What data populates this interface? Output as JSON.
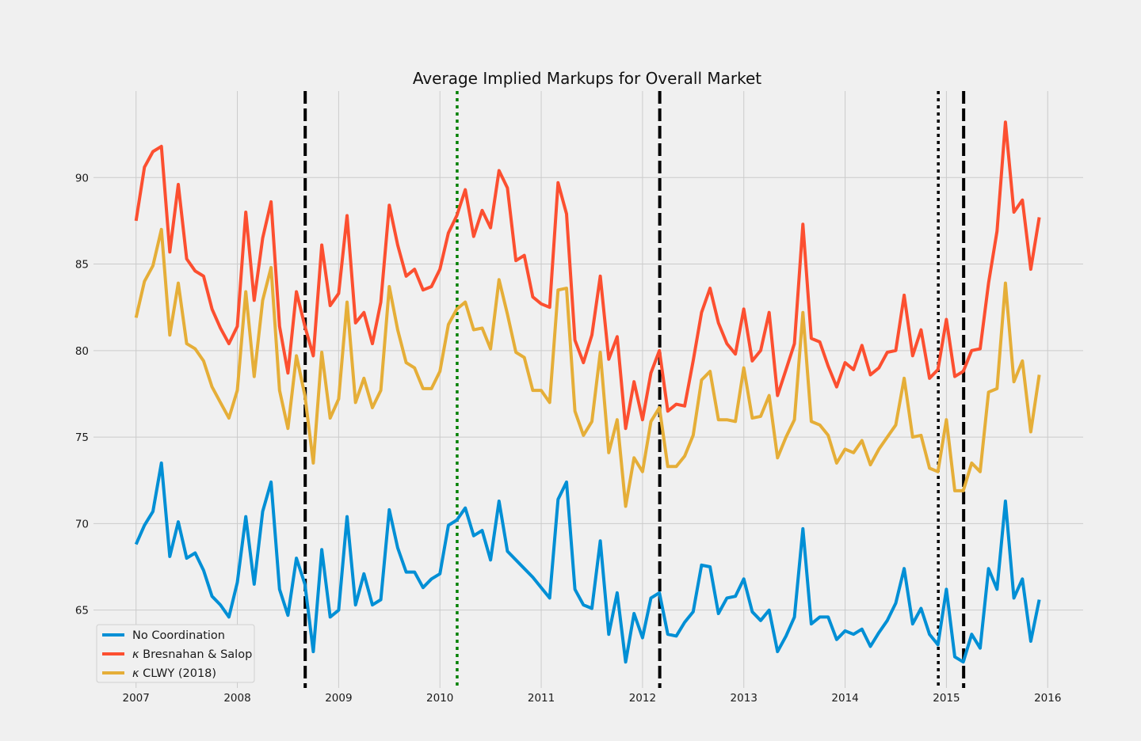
{
  "chart_data": {
    "type": "line",
    "title": "Average Implied Markups for Overall Market",
    "xlabel": "",
    "ylabel": "",
    "xlim": [
      2006.58,
      2016.35
    ],
    "ylim": [
      60.5,
      95.0
    ],
    "x_ticks": [
      2007,
      2008,
      2009,
      2010,
      2011,
      2012,
      2013,
      2014,
      2015,
      2016
    ],
    "x_tick_labels": [
      "2007",
      "2008",
      "2009",
      "2010",
      "2011",
      "2012",
      "2013",
      "2014",
      "2015",
      "2016"
    ],
    "y_ticks": [
      65,
      70,
      75,
      80,
      85,
      90
    ],
    "y_tick_labels": [
      "65",
      "70",
      "75",
      "80",
      "85",
      "90"
    ],
    "grid": true,
    "legend_placement": "lower-left",
    "x_start": 2007.0,
    "x_step": 0.08333,
    "series": [
      {
        "name": "No Coordination",
        "symbol": "",
        "color": "#008fd5",
        "values": [
          68.8,
          69.9,
          70.7,
          73.5,
          68.1,
          70.1,
          68.0,
          68.3,
          67.3,
          65.8,
          65.3,
          64.6,
          66.6,
          70.4,
          66.5,
          70.7,
          72.4,
          66.2,
          64.7,
          68.0,
          66.5,
          62.6,
          68.5,
          64.6,
          65.0,
          70.4,
          65.3,
          67.1,
          65.3,
          65.6,
          70.8,
          68.6,
          67.2,
          67.2,
          66.3,
          66.8,
          67.1,
          69.9,
          70.2,
          70.9,
          69.3,
          69.6,
          67.9,
          71.3,
          68.4,
          67.9,
          67.4,
          66.9,
          66.3,
          65.7,
          71.4,
          72.4,
          66.2,
          65.3,
          65.1,
          69.0,
          63.6,
          66.0,
          62.0,
          64.8,
          63.4,
          65.7,
          66.0,
          63.6,
          63.5,
          64.3,
          64.9,
          67.6,
          67.5,
          64.8,
          65.7,
          65.8,
          66.8,
          64.9,
          64.4,
          65.0,
          62.6,
          63.5,
          64.6,
          69.7,
          64.2,
          64.6,
          64.6,
          63.3,
          63.8,
          63.6,
          63.9,
          62.9,
          63.7,
          64.4,
          65.4,
          67.4,
          64.2,
          65.1,
          63.6,
          63.0,
          66.2,
          62.3,
          62.0,
          63.6,
          62.8,
          67.4,
          66.2,
          71.3,
          65.7,
          66.8,
          63.2,
          65.6
        ]
      },
      {
        "name": "Bresnahan & Salop",
        "symbol": "κ",
        "color": "#fc4f30",
        "values": [
          87.5,
          90.6,
          91.5,
          91.8,
          85.7,
          89.6,
          85.3,
          84.6,
          84.3,
          82.4,
          81.3,
          80.4,
          81.4,
          88.0,
          82.9,
          86.5,
          88.6,
          81.4,
          78.7,
          83.4,
          81.4,
          79.7,
          86.1,
          82.6,
          83.3,
          87.8,
          81.6,
          82.2,
          80.4,
          82.8,
          88.4,
          86.1,
          84.3,
          84.7,
          83.5,
          83.7,
          84.7,
          86.8,
          87.8,
          89.3,
          86.6,
          88.1,
          87.1,
          90.4,
          89.4,
          85.2,
          85.5,
          83.1,
          82.7,
          82.5,
          89.7,
          87.9,
          80.6,
          79.3,
          80.9,
          84.3,
          79.5,
          80.8,
          75.5,
          78.2,
          76.0,
          78.7,
          80.0,
          76.5,
          76.9,
          76.8,
          79.4,
          82.2,
          83.6,
          81.6,
          80.4,
          79.8,
          82.4,
          79.4,
          80.0,
          82.2,
          77.4,
          78.9,
          80.4,
          87.3,
          80.7,
          80.5,
          79.1,
          77.9,
          79.3,
          78.9,
          80.3,
          78.6,
          79.0,
          79.9,
          80.0,
          83.2,
          79.7,
          81.2,
          78.4,
          78.9,
          81.8,
          78.5,
          78.8,
          80.0,
          80.1,
          83.9,
          86.9,
          93.2,
          88.0,
          88.7,
          84.7,
          87.7
        ]
      },
      {
        "name": "CLWY (2018)",
        "symbol": "κ",
        "color": "#e5ae38",
        "values": [
          81.9,
          84.0,
          84.9,
          87.0,
          80.9,
          83.9,
          80.4,
          80.1,
          79.4,
          77.9,
          77.0,
          76.1,
          77.7,
          83.4,
          78.5,
          82.9,
          84.8,
          77.7,
          75.5,
          79.7,
          77.4,
          73.5,
          79.9,
          76.1,
          77.2,
          82.8,
          77.0,
          78.4,
          76.7,
          77.7,
          83.7,
          81.2,
          79.3,
          79.0,
          77.8,
          77.8,
          78.8,
          81.5,
          82.4,
          82.8,
          81.2,
          81.3,
          80.1,
          84.1,
          82.1,
          79.9,
          79.6,
          77.7,
          77.7,
          77.0,
          83.5,
          83.6,
          76.5,
          75.1,
          75.9,
          79.9,
          74.1,
          76.0,
          71.0,
          73.8,
          73.0,
          75.9,
          76.7,
          73.3,
          73.3,
          73.9,
          75.1,
          78.3,
          78.8,
          76.0,
          76.0,
          75.9,
          79.0,
          76.1,
          76.2,
          77.4,
          73.8,
          75.0,
          76.0,
          82.2,
          75.9,
          75.7,
          75.1,
          73.5,
          74.3,
          74.1,
          74.8,
          73.4,
          74.3,
          75.0,
          75.7,
          78.4,
          75.0,
          75.1,
          73.2,
          73.0,
          76.0,
          71.9,
          71.9,
          73.5,
          73.0,
          77.6,
          77.8,
          83.9,
          78.2,
          79.4,
          75.3,
          78.6
        ]
      }
    ],
    "vertical_lines": [
      {
        "x": 2008.67,
        "style": "dashed",
        "color": "#000000"
      },
      {
        "x": 2010.17,
        "style": "dotted",
        "color": "#008000"
      },
      {
        "x": 2012.17,
        "style": "dashed",
        "color": "#000000"
      },
      {
        "x": 2014.92,
        "style": "dotted",
        "color": "#000000"
      },
      {
        "x": 2015.17,
        "style": "dashed",
        "color": "#000000"
      }
    ]
  }
}
